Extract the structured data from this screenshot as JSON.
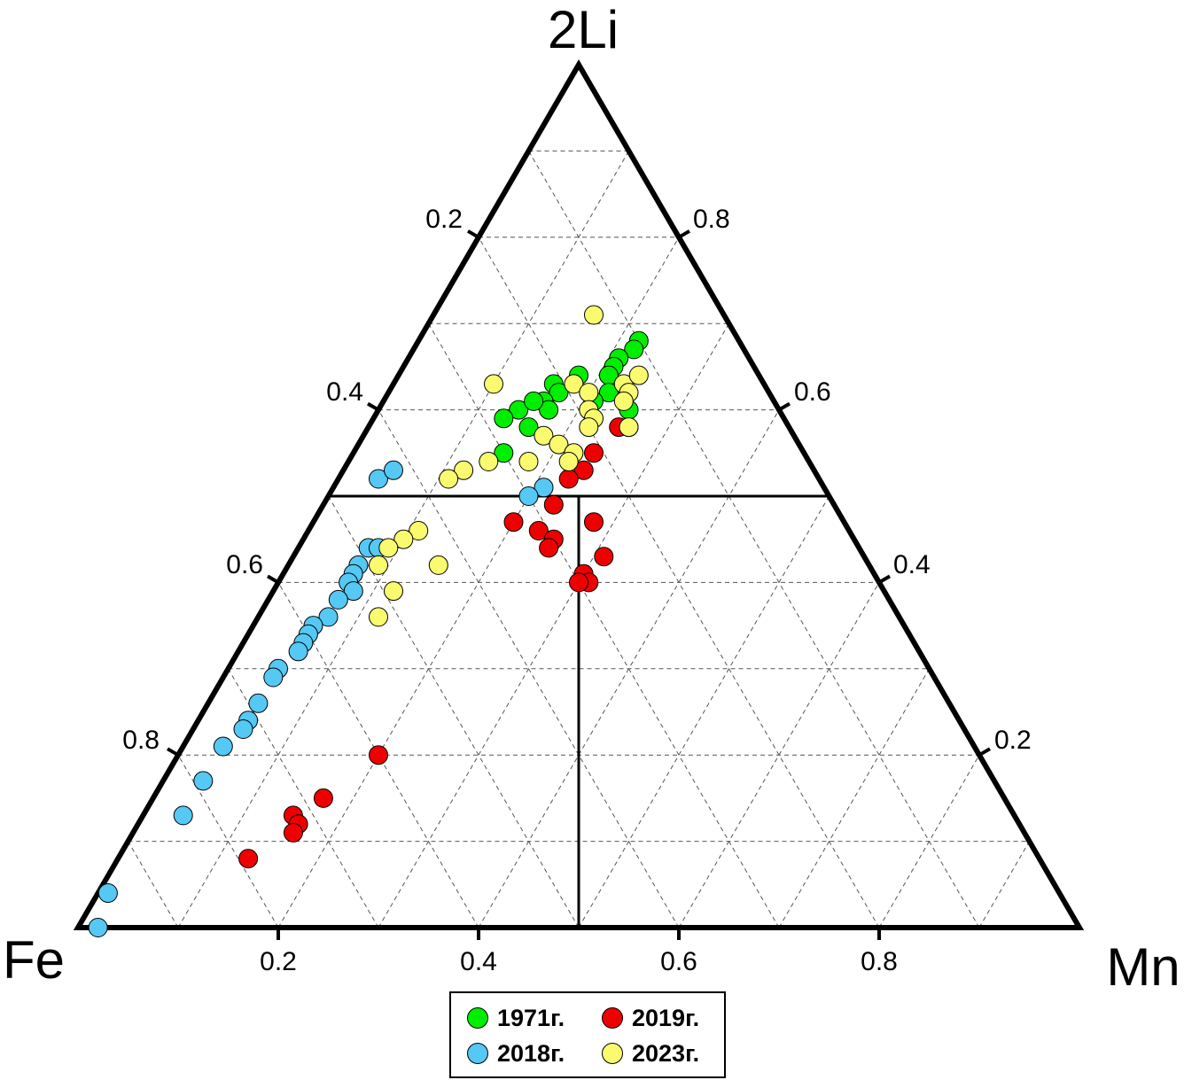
{
  "chart_data": {
    "type": "ternary-scatter",
    "apex_labels": {
      "top": "2Li",
      "left": "Fe",
      "right": "Mn"
    },
    "tick_labels": {
      "bottom": [
        "0.2",
        "0.4",
        "0.6",
        "0.8"
      ],
      "left": [
        "0.2",
        "0.4",
        "0.6",
        "0.8"
      ],
      "right": [
        "0.8",
        "0.6",
        "0.4",
        "0.2"
      ]
    },
    "grid": true,
    "grid_step": 0.1,
    "divider_lines": [
      {
        "description": "constant 2Li",
        "value": 0.5
      },
      {
        "description": "Fe = Mn split below 2Li = 0.5"
      }
    ],
    "legend_position": "bottom",
    "series": [
      {
        "name": "1971г.",
        "color": "#00ee00",
        "points": [
          {
            "li": 0.68,
            "mn": 0.22
          },
          {
            "li": 0.67,
            "mn": 0.22
          },
          {
            "li": 0.66,
            "mn": 0.21
          },
          {
            "li": 0.65,
            "mn": 0.21
          },
          {
            "li": 0.64,
            "mn": 0.21
          },
          {
            "li": 0.62,
            "mn": 0.22
          },
          {
            "li": 0.61,
            "mn": 0.21
          },
          {
            "li": 0.6,
            "mn": 0.25
          },
          {
            "li": 0.58,
            "mn": 0.26
          },
          {
            "li": 0.64,
            "mn": 0.18
          },
          {
            "li": 0.63,
            "mn": 0.16
          },
          {
            "li": 0.62,
            "mn": 0.17
          },
          {
            "li": 0.61,
            "mn": 0.16
          },
          {
            "li": 0.6,
            "mn": 0.17
          },
          {
            "li": 0.6,
            "mn": 0.14
          },
          {
            "li": 0.59,
            "mn": 0.13
          },
          {
            "li": 0.58,
            "mn": 0.16
          },
          {
            "li": 0.55,
            "mn": 0.15
          },
          {
            "li": 0.61,
            "mn": 0.15
          }
        ]
      },
      {
        "name": "2018г.",
        "color": "#55c8f4",
        "points": [
          {
            "li": 0.52,
            "mn": 0.04
          },
          {
            "li": 0.53,
            "mn": 0.05
          },
          {
            "li": 0.51,
            "mn": 0.21
          },
          {
            "li": 0.5,
            "mn": 0.2
          },
          {
            "li": 0.44,
            "mn": 0.07
          },
          {
            "li": 0.44,
            "mn": 0.08
          },
          {
            "li": 0.42,
            "mn": 0.07
          },
          {
            "li": 0.41,
            "mn": 0.07
          },
          {
            "li": 0.4,
            "mn": 0.07
          },
          {
            "li": 0.39,
            "mn": 0.08
          },
          {
            "li": 0.38,
            "mn": 0.07
          },
          {
            "li": 0.36,
            "mn": 0.07
          },
          {
            "li": 0.35,
            "mn": 0.06
          },
          {
            "li": 0.34,
            "mn": 0.06
          },
          {
            "li": 0.33,
            "mn": 0.06
          },
          {
            "li": 0.32,
            "mn": 0.06
          },
          {
            "li": 0.3,
            "mn": 0.05
          },
          {
            "li": 0.29,
            "mn": 0.05
          },
          {
            "li": 0.26,
            "mn": 0.05
          },
          {
            "li": 0.24,
            "mn": 0.05
          },
          {
            "li": 0.23,
            "mn": 0.05
          },
          {
            "li": 0.21,
            "mn": 0.04
          },
          {
            "li": 0.17,
            "mn": 0.04
          },
          {
            "li": 0.13,
            "mn": 0.04
          },
          {
            "li": 0.04,
            "mn": 0.01
          },
          {
            "li": 0.0,
            "mn": 0.02
          }
        ]
      },
      {
        "name": "2019г.",
        "color": "#ee0000",
        "points": [
          {
            "li": 0.58,
            "mn": 0.25
          },
          {
            "li": 0.55,
            "mn": 0.24
          },
          {
            "li": 0.53,
            "mn": 0.24
          },
          {
            "li": 0.52,
            "mn": 0.23
          },
          {
            "li": 0.49,
            "mn": 0.23
          },
          {
            "li": 0.47,
            "mn": 0.28
          },
          {
            "li": 0.47,
            "mn": 0.2
          },
          {
            "li": 0.46,
            "mn": 0.23
          },
          {
            "li": 0.45,
            "mn": 0.25
          },
          {
            "li": 0.44,
            "mn": 0.25
          },
          {
            "li": 0.43,
            "mn": 0.31
          },
          {
            "li": 0.41,
            "mn": 0.3
          },
          {
            "li": 0.4,
            "mn": 0.31
          },
          {
            "li": 0.4,
            "mn": 0.3
          },
          {
            "li": 0.2,
            "mn": 0.2
          },
          {
            "li": 0.15,
            "mn": 0.17
          },
          {
            "li": 0.13,
            "mn": 0.15
          },
          {
            "li": 0.12,
            "mn": 0.16
          },
          {
            "li": 0.11,
            "mn": 0.16
          },
          {
            "li": 0.08,
            "mn": 0.13
          }
        ]
      },
      {
        "name": "2023г.",
        "color": "#fafa6e",
        "points": [
          {
            "li": 0.71,
            "mn": 0.16
          },
          {
            "li": 0.63,
            "mn": 0.1
          },
          {
            "li": 0.63,
            "mn": 0.18
          },
          {
            "li": 0.63,
            "mn": 0.23
          },
          {
            "li": 0.64,
            "mn": 0.24
          },
          {
            "li": 0.62,
            "mn": 0.24
          },
          {
            "li": 0.62,
            "mn": 0.2
          },
          {
            "li": 0.61,
            "mn": 0.24
          },
          {
            "li": 0.6,
            "mn": 0.21
          },
          {
            "li": 0.59,
            "mn": 0.22
          },
          {
            "li": 0.58,
            "mn": 0.22
          },
          {
            "li": 0.58,
            "mn": 0.26
          },
          {
            "li": 0.57,
            "mn": 0.18
          },
          {
            "li": 0.56,
            "mn": 0.2
          },
          {
            "li": 0.55,
            "mn": 0.22
          },
          {
            "li": 0.54,
            "mn": 0.22
          },
          {
            "li": 0.54,
            "mn": 0.18
          },
          {
            "li": 0.54,
            "mn": 0.14
          },
          {
            "li": 0.53,
            "mn": 0.12
          },
          {
            "li": 0.52,
            "mn": 0.11
          },
          {
            "li": 0.46,
            "mn": 0.11
          },
          {
            "li": 0.45,
            "mn": 0.1
          },
          {
            "li": 0.44,
            "mn": 0.09
          },
          {
            "li": 0.42,
            "mn": 0.09
          },
          {
            "li": 0.42,
            "mn": 0.15
          },
          {
            "li": 0.39,
            "mn": 0.12
          },
          {
            "li": 0.36,
            "mn": 0.12
          }
        ]
      }
    ]
  }
}
